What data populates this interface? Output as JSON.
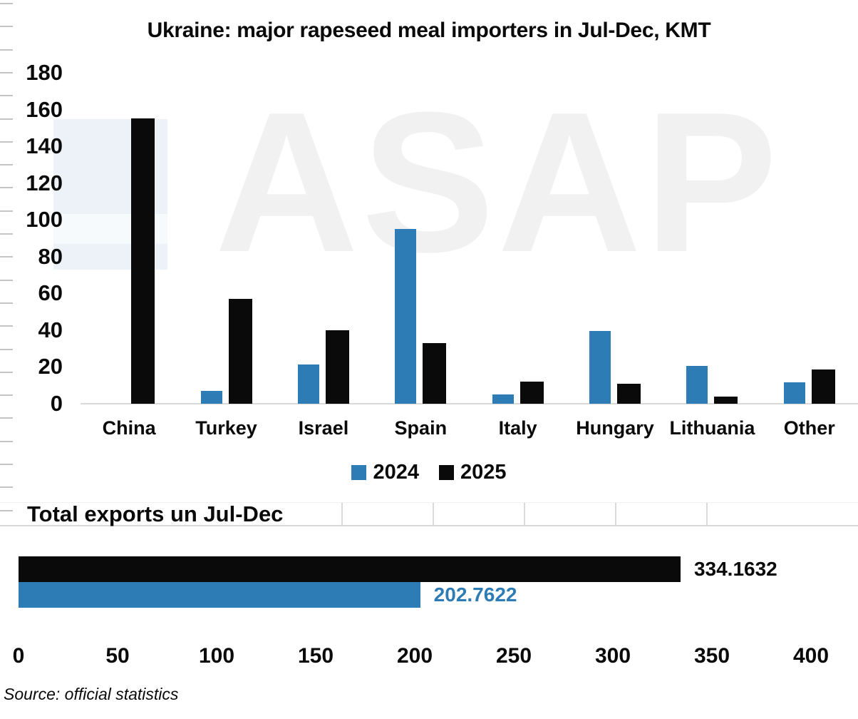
{
  "watermark": "ASAP",
  "source": "Source: official statistics",
  "colors": {
    "blue": "#2e7cb5",
    "black": "#0a0a0a",
    "grid": "#d9d9d9",
    "faint_grid": "#f0f0f0",
    "ruler_tick": "#c4c4c4",
    "watermark_text": "#f1f1f1",
    "watermark_block": "#edf2f9",
    "watermark_block_inner": "#f7fafc"
  },
  "chart_data": [
    {
      "type": "bar",
      "title": "Ukraine: major rapeseed meal importers in Jul-Dec, KMT",
      "categories": [
        "China",
        "Turkey",
        "Israel",
        "Spain",
        "Italy",
        "Hungary",
        "Lithuania",
        "Other"
      ],
      "series": [
        {
          "name": "2024",
          "color": "#2e7cb5",
          "values": [
            0,
            7,
            21.5,
            95,
            5,
            39.5,
            20.5,
            11.5
          ]
        },
        {
          "name": "2025",
          "color": "#0a0a0a",
          "values": [
            155,
            57,
            40,
            33,
            12,
            11,
            4,
            18.5
          ]
        }
      ],
      "ylim": [
        0,
        180
      ],
      "yticks": [
        0,
        20,
        40,
        60,
        80,
        100,
        120,
        140,
        160,
        180
      ],
      "grid": false,
      "legend_position": "bottom-center"
    },
    {
      "type": "bar",
      "orientation": "horizontal",
      "title": "Total exports un Jul-Dec",
      "bars": [
        {
          "name": "2025",
          "value": 334.1632,
          "label": "334.1632",
          "color": "#0a0a0a",
          "label_color": "#0a0a0a"
        },
        {
          "name": "2024",
          "value": 202.7622,
          "label": "202.7622",
          "color": "#2e7cb5",
          "label_color": "#2e7cb5"
        }
      ],
      "xlim": [
        0,
        400
      ],
      "xticks": [
        0,
        50,
        100,
        150,
        200,
        250,
        300,
        350,
        400
      ]
    }
  ]
}
